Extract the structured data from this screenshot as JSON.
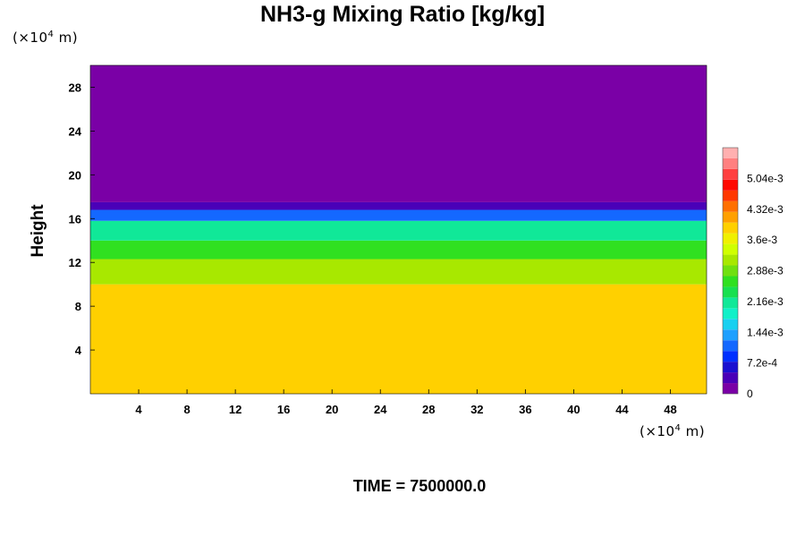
{
  "chart_data": {
    "type": "heatmap",
    "title": "NH3-g Mixing Ratio [kg/kg]",
    "ylabel": "Height",
    "x_unit_prefix": "(×10",
    "x_unit_exp": "4",
    "x_unit_suffix": " m)",
    "y_unit_prefix": "(×10",
    "y_unit_exp": "4",
    "y_unit_suffix": " m)",
    "xlim": [
      0,
      51
    ],
    "ylim": [
      0,
      30
    ],
    "x_ticks": [
      4,
      8,
      12,
      16,
      20,
      24,
      28,
      32,
      36,
      40,
      44,
      48
    ],
    "y_ticks": [
      4,
      8,
      12,
      16,
      20,
      24,
      28
    ],
    "field_regions": [
      {
        "y_from": 0,
        "y_to": 10,
        "value": 0.0038
      },
      {
        "y_from": 10,
        "y_to": 12.3,
        "value": 0.0032
      },
      {
        "y_from": 12.3,
        "y_to": 14.0,
        "value": 0.0026
      },
      {
        "y_from": 14.0,
        "y_to": 15.8,
        "value": 0.0021
      },
      {
        "y_from": 15.8,
        "y_to": 16.8,
        "value": 0.0012
      },
      {
        "y_from": 16.8,
        "y_to": 17.5,
        "value": 0.0004
      },
      {
        "y_from": 17.5,
        "y_to": 30,
        "value": 0.0
      }
    ],
    "colorbar": {
      "min": 0,
      "max": 0.00576,
      "tick_values": [
        0,
        0.00072,
        0.00144,
        0.00216,
        0.00288,
        0.0036,
        0.00432,
        0.00504
      ],
      "tick_labels": [
        "0",
        "7.2e-4",
        "1.44e-3",
        "2.16e-3",
        "2.88e-3",
        "3.6e-3",
        "4.32e-3",
        "5.04e-3"
      ],
      "colors": [
        "#7a00a6",
        "#4a00b8",
        "#1a10d0",
        "#0030ff",
        "#1468ff",
        "#1ea0ff",
        "#18d0f0",
        "#10f0c8",
        "#10e898",
        "#18e050",
        "#30e020",
        "#70e010",
        "#a8e800",
        "#d0ff00",
        "#f0f000",
        "#ffd000",
        "#ffa000",
        "#ff7000",
        "#ff3800",
        "#ff0800",
        "#ff4040",
        "#ff8080",
        "#ffb0b0"
      ]
    }
  },
  "time_label": "TIME = 7500000.0"
}
